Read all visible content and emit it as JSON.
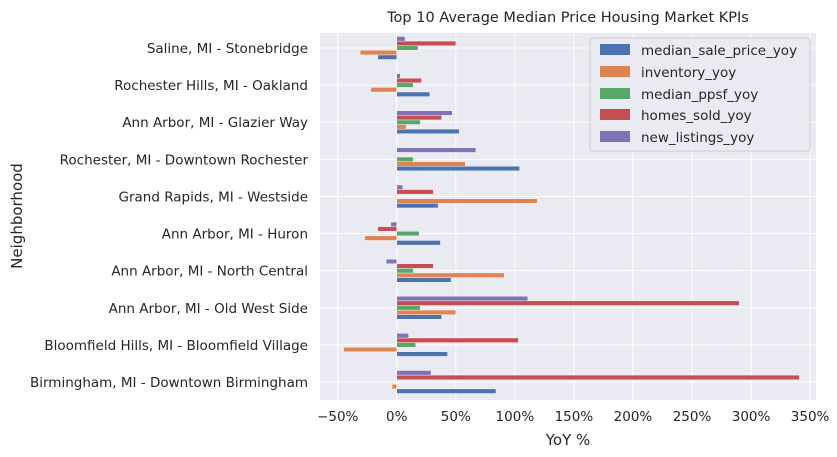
{
  "chart_data": {
    "type": "bar",
    "orientation": "horizontal",
    "title": "Top 10 Average Median Price Housing Market KPIs",
    "xlabel": "YoY %",
    "ylabel": "Neighborhood",
    "xlim": [
      -65,
      355
    ],
    "x_ticks": [
      -50,
      0,
      50,
      100,
      150,
      200,
      250,
      300,
      350
    ],
    "x_tick_labels": [
      "−50%",
      "0%",
      "50%",
      "100%",
      "150%",
      "200%",
      "250%",
      "300%",
      "350%"
    ],
    "grid": true,
    "legend_position": "top-right",
    "categories": [
      "Birmingham, MI - Downtown Birmingham",
      "Bloomfield Hills, MI - Bloomfield Village",
      "Ann Arbor, MI - Old West Side",
      "Ann Arbor, MI - North Central",
      "Ann Arbor, MI - Huron",
      "Grand Rapids, MI - Westside",
      "Rochester, MI - Downtown Rochester",
      "Ann Arbor, MI - Glazier Way",
      "Rochester Hills, MI - Oakland",
      "Saline, MI - Stonebridge"
    ],
    "series": [
      {
        "name": "median_sale_price_yoy",
        "color": "#4c72b0",
        "values": [
          84,
          43,
          38,
          46,
          37,
          35,
          104,
          53,
          28,
          -16
        ]
      },
      {
        "name": "inventory_yoy",
        "color": "#dd8452",
        "values": [
          -4,
          -45,
          50,
          91,
          -27,
          119,
          58,
          8,
          -22,
          -31
        ]
      },
      {
        "name": "median_ppsf_yoy",
        "color": "#55a868",
        "values": [
          0,
          16,
          20,
          14,
          19,
          0,
          14,
          20,
          14,
          18
        ]
      },
      {
        "name": "homes_sold_yoy",
        "color": "#c44e52",
        "values": [
          341,
          103,
          290,
          31,
          -16,
          31,
          0,
          38,
          21,
          50
        ]
      },
      {
        "name": "new_listings_yoy",
        "color": "#8172b3",
        "values": [
          29,
          10,
          111,
          -9,
          -5,
          5,
          67,
          47,
          3,
          7
        ]
      }
    ]
  }
}
